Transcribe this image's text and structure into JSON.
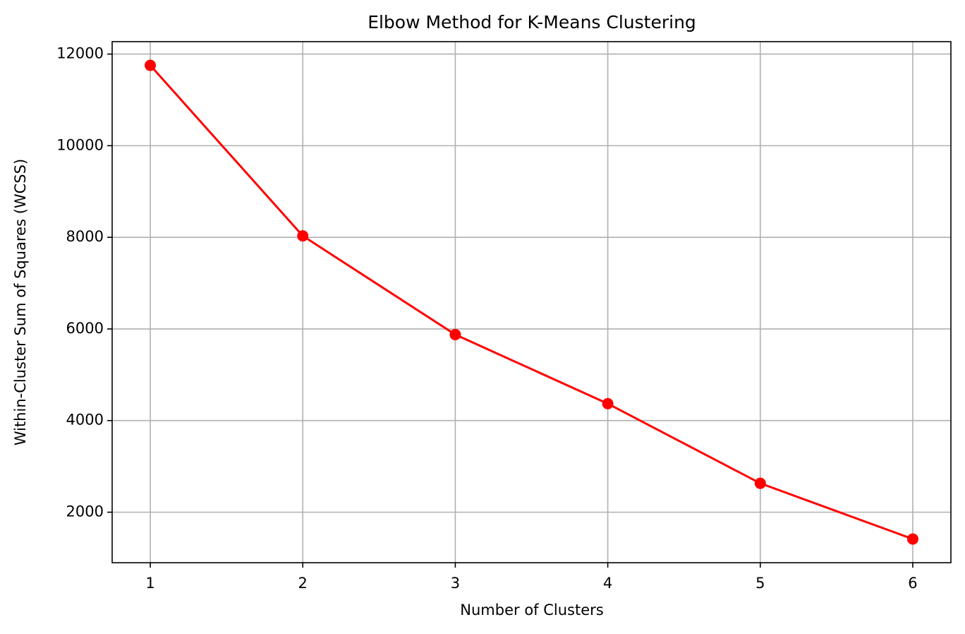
{
  "chart_data": {
    "type": "line",
    "title": "Elbow Method for K-Means Clustering",
    "x_label": "Number of Clusters",
    "y_label": "Within-Cluster Sum of Squares (WCSS)",
    "x": [
      1,
      2,
      3,
      4,
      5,
      6
    ],
    "series": [
      {
        "name": "WCSS",
        "color": "#ff0000",
        "values": [
          11754,
          8031,
          5877,
          4369,
          2631,
          1415
        ]
      }
    ],
    "xlim": [
      0.75,
      6.25
    ],
    "ylim": [
      898,
      12271
    ],
    "xticks": [
      1,
      2,
      3,
      4,
      5,
      6
    ],
    "yticks": [
      2000,
      4000,
      6000,
      8000,
      10000,
      12000
    ],
    "grid": true,
    "marker": "circle"
  }
}
